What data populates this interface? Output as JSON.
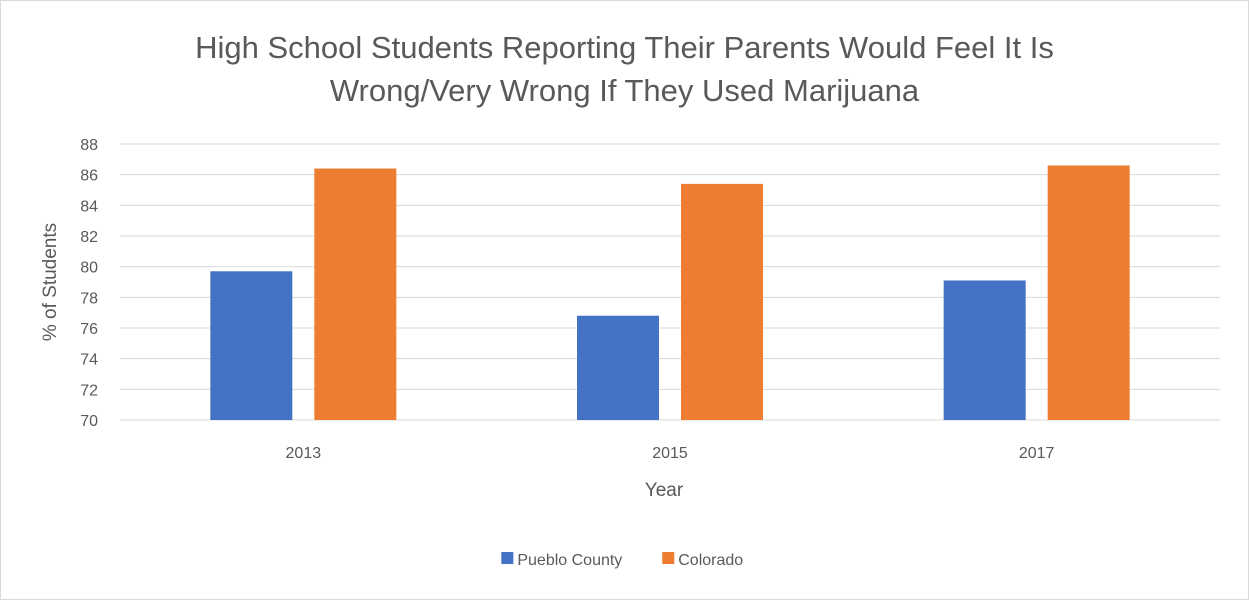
{
  "chart_data": {
    "type": "bar",
    "title_lines": [
      "High School Students Reporting Their Parents Would Feel It Is",
      "Wrong/Very Wrong If They Used Marijuana"
    ],
    "xlabel": "Year",
    "ylabel": "% of Students",
    "categories": [
      "2013",
      "2015",
      "2017"
    ],
    "ylim": [
      70,
      88
    ],
    "y_ticks": [
      "70",
      "72",
      "74",
      "76",
      "78",
      "80",
      "82",
      "84",
      "86",
      "88"
    ],
    "grid": true,
    "legend_position": "bottom",
    "series": [
      {
        "name": "Pueblo County",
        "color": "#4472c4",
        "values": [
          79.7,
          76.8,
          79.1
        ]
      },
      {
        "name": "Colorado",
        "color": "#ed7d31",
        "values": [
          86.4,
          85.4,
          86.6
        ]
      }
    ]
  },
  "colors": {
    "text": "#595959",
    "gridline": "#d9d9d9",
    "frame": "#d9d9d9"
  }
}
